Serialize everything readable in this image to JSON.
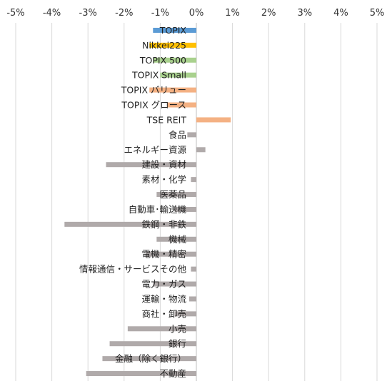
{
  "chart_data": {
    "type": "bar",
    "orientation": "horizontal",
    "title": "",
    "xlabel": "",
    "ylabel": "",
    "xlim": [
      -5,
      5
    ],
    "x_tick_values": [
      -5,
      -4,
      -3,
      -2,
      -1,
      0,
      1,
      2,
      3,
      4,
      5
    ],
    "x_tick_labels": [
      "-5%",
      "-4%",
      "-3%",
      "-2%",
      "-1%",
      "0%",
      "1%",
      "2%",
      "3%",
      "4%",
      "5%"
    ],
    "grid": "vertical",
    "legend": "none",
    "value_unit": "%",
    "categories": [
      "TOPIX",
      "Nikkei225",
      "TOPIX 500",
      "TOPIX Small",
      "TOPIX バリュー",
      "TOPIX グロース",
      "TSE REIT",
      "食品",
      "エネルギー資源",
      "建設・資材",
      "素材・化学",
      "医薬品",
      "自動車･輸送機",
      "鉄鋼・非鉄",
      "機械",
      "電機・精密",
      "情報通信・サービスその他",
      "電力・ガス",
      "運輸・物流",
      "商社・卸売",
      "小売",
      "銀行",
      "金融（除く銀行）",
      "不動産"
    ],
    "values": [
      -1.2,
      -1.3,
      -1.2,
      -1.0,
      -1.3,
      -0.8,
      0.95,
      -0.25,
      0.25,
      -2.5,
      -0.15,
      -1.1,
      -0.6,
      -3.65,
      -1.1,
      -1.4,
      -0.15,
      -1.2,
      -0.2,
      -0.6,
      -1.9,
      -2.4,
      -2.6,
      -3.05
    ],
    "colors": [
      "#5b9bd5",
      "#ffc000",
      "#a9d18e",
      "#a9d18e",
      "#f4b183",
      "#f4b183",
      "#f4b183",
      "#b0aaaa",
      "#b0aaaa",
      "#b0aaaa",
      "#b0aaaa",
      "#b0aaaa",
      "#b0aaaa",
      "#b0aaaa",
      "#b0aaaa",
      "#b0aaaa",
      "#b0aaaa",
      "#b0aaaa",
      "#b0aaaa",
      "#b0aaaa",
      "#b0aaaa",
      "#b0aaaa",
      "#b0aaaa",
      "#b0aaaa"
    ]
  }
}
